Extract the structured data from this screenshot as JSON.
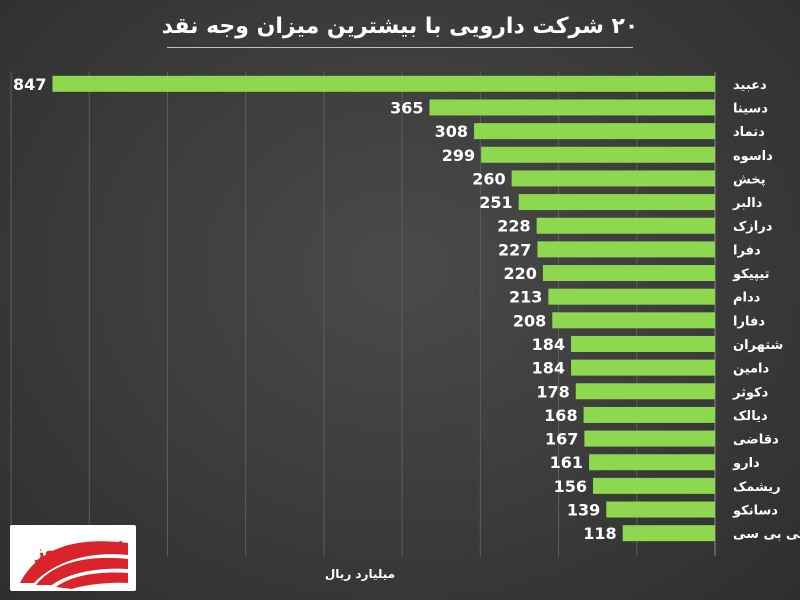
{
  "title": "۲۰ شرکت دارویی با بیشترین میزان وجه نقد",
  "unit_label": "میلیارد ریال",
  "logo": {
    "text": "بورس نیوز"
  },
  "colors": {
    "bar": "#8dd84f",
    "background": "#3d3d3d",
    "grid": "#5e5e5e",
    "text": "#ffffff"
  },
  "chart_data": {
    "type": "bar",
    "orientation": "horizontal",
    "title": "۲۰ شرکت دارویی با بیشترین میزان وجه نقد",
    "xlabel": "میلیارد ریال",
    "xlim": [
      0,
      900
    ],
    "grid": true,
    "categories": [
      "دعبید",
      "دسینا",
      "دتماد",
      "داسوه",
      "پخش",
      "دالبر",
      "درازک",
      "دفرا",
      "تیپیکو",
      "ددام",
      "دفارا",
      "شتهران",
      "دامین",
      "دکوثر",
      "دیالک",
      "دقاضی",
      "دارو",
      "ریشمک",
      "دسانکو",
      "کی بی سی"
    ],
    "values": [
      847,
      365,
      308,
      299,
      260,
      251,
      228,
      227,
      220,
      213,
      208,
      184,
      184,
      178,
      168,
      167,
      161,
      156,
      139,
      118
    ]
  }
}
